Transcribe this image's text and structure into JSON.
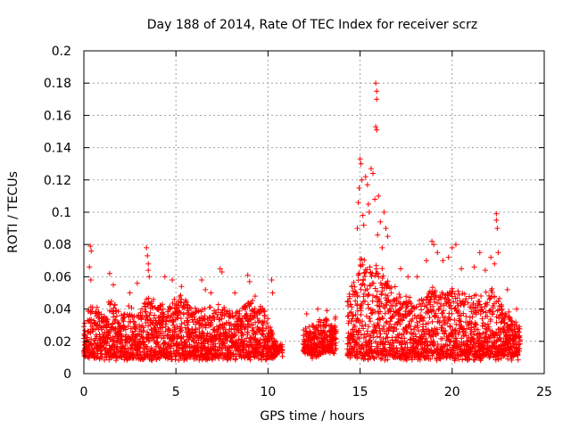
{
  "chart_data": {
    "type": "scatter",
    "title": "Day 188 of 2014, Rate Of TEC Index for receiver scrz",
    "xlabel": "GPS time / hours",
    "ylabel": "ROTI / TECUs",
    "xlim": [
      0,
      25
    ],
    "ylim": [
      0,
      0.2
    ],
    "x_ticks": [
      0,
      5,
      10,
      15,
      20,
      25
    ],
    "y_ticks": [
      0,
      0.02,
      0.04,
      0.06,
      0.08,
      0.1,
      0.12,
      0.14,
      0.16,
      0.18,
      0.2
    ],
    "x_tick_labels": [
      "0",
      "5",
      "10",
      "15",
      "20",
      "25"
    ],
    "y_tick_labels": [
      "0",
      "0.02",
      "0.04",
      "0.06",
      "0.08",
      "0.1",
      "0.12",
      "0.14",
      "0.16",
      "0.18",
      "0.2"
    ],
    "grid": true,
    "marker": "+",
    "color": "#ff0000",
    "envelope": {
      "description": "approximate band of dense ROTI samples; upper = typical upper edge, lower = typical lower edge (TECU/min)",
      "x": [
        0,
        0.5,
        1,
        1.5,
        2,
        2.5,
        3,
        3.5,
        4,
        4.5,
        5,
        5.5,
        6,
        6.5,
        7,
        7.5,
        8,
        8.5,
        9,
        9.5,
        10,
        10.5,
        12,
        12.5,
        13,
        13.5,
        14.5,
        15,
        15.5,
        16,
        16.5,
        17,
        17.5,
        18,
        18.5,
        19,
        19.5,
        20,
        20.5,
        21,
        21.5,
        22,
        22.5,
        23,
        23.5
      ],
      "upper": [
        0.034,
        0.042,
        0.036,
        0.044,
        0.038,
        0.04,
        0.036,
        0.05,
        0.042,
        0.04,
        0.046,
        0.044,
        0.04,
        0.038,
        0.04,
        0.042,
        0.036,
        0.038,
        0.044,
        0.04,
        0.036,
        0.016,
        0.026,
        0.03,
        0.034,
        0.03,
        0.05,
        0.07,
        0.062,
        0.066,
        0.056,
        0.05,
        0.046,
        0.042,
        0.046,
        0.052,
        0.05,
        0.052,
        0.05,
        0.048,
        0.046,
        0.05,
        0.05,
        0.036,
        0.03
      ],
      "lower": [
        0.012,
        0.01,
        0.01,
        0.01,
        0.01,
        0.01,
        0.01,
        0.01,
        0.01,
        0.01,
        0.01,
        0.01,
        0.01,
        0.01,
        0.01,
        0.01,
        0.01,
        0.01,
        0.01,
        0.01,
        0.01,
        0.012,
        0.014,
        0.01,
        0.014,
        0.014,
        0.01,
        0.01,
        0.01,
        0.01,
        0.01,
        0.01,
        0.01,
        0.01,
        0.01,
        0.01,
        0.01,
        0.01,
        0.01,
        0.01,
        0.01,
        0.01,
        0.01,
        0.01,
        0.01
      ]
    },
    "data_gaps_hours": [
      [
        10.8,
        11.9
      ],
      [
        13.7,
        14.3
      ]
    ],
    "outliers": [
      {
        "x": 0.35,
        "y": 0.079
      },
      {
        "x": 0.4,
        "y": 0.076
      },
      {
        "x": 0.3,
        "y": 0.066
      },
      {
        "x": 0.38,
        "y": 0.058
      },
      {
        "x": 1.4,
        "y": 0.062
      },
      {
        "x": 1.6,
        "y": 0.055
      },
      {
        "x": 2.5,
        "y": 0.05
      },
      {
        "x": 2.9,
        "y": 0.056
      },
      {
        "x": 3.4,
        "y": 0.078
      },
      {
        "x": 3.45,
        "y": 0.073
      },
      {
        "x": 3.5,
        "y": 0.068
      },
      {
        "x": 3.5,
        "y": 0.064
      },
      {
        "x": 3.55,
        "y": 0.06
      },
      {
        "x": 4.4,
        "y": 0.06
      },
      {
        "x": 4.8,
        "y": 0.058
      },
      {
        "x": 5.3,
        "y": 0.054
      },
      {
        "x": 6.4,
        "y": 0.058
      },
      {
        "x": 6.6,
        "y": 0.052
      },
      {
        "x": 6.9,
        "y": 0.05
      },
      {
        "x": 7.4,
        "y": 0.065
      },
      {
        "x": 7.5,
        "y": 0.063
      },
      {
        "x": 8.2,
        "y": 0.05
      },
      {
        "x": 8.9,
        "y": 0.061
      },
      {
        "x": 9.0,
        "y": 0.057
      },
      {
        "x": 9.3,
        "y": 0.048
      },
      {
        "x": 10.2,
        "y": 0.058
      },
      {
        "x": 10.25,
        "y": 0.05
      },
      {
        "x": 12.1,
        "y": 0.037
      },
      {
        "x": 12.7,
        "y": 0.04
      },
      {
        "x": 13.2,
        "y": 0.039
      },
      {
        "x": 14.85,
        "y": 0.09
      },
      {
        "x": 14.9,
        "y": 0.106
      },
      {
        "x": 14.95,
        "y": 0.115
      },
      {
        "x": 15.0,
        "y": 0.133
      },
      {
        "x": 15.05,
        "y": 0.13
      },
      {
        "x": 15.1,
        "y": 0.12
      },
      {
        "x": 15.15,
        "y": 0.098
      },
      {
        "x": 15.2,
        "y": 0.092
      },
      {
        "x": 15.3,
        "y": 0.122
      },
      {
        "x": 15.4,
        "y": 0.117
      },
      {
        "x": 15.45,
        "y": 0.105
      },
      {
        "x": 15.5,
        "y": 0.1
      },
      {
        "x": 15.6,
        "y": 0.127
      },
      {
        "x": 15.7,
        "y": 0.124
      },
      {
        "x": 15.8,
        "y": 0.108
      },
      {
        "x": 15.85,
        "y": 0.18
      },
      {
        "x": 15.9,
        "y": 0.175
      },
      {
        "x": 15.9,
        "y": 0.17
      },
      {
        "x": 15.85,
        "y": 0.153
      },
      {
        "x": 15.9,
        "y": 0.151
      },
      {
        "x": 16.0,
        "y": 0.11
      },
      {
        "x": 16.1,
        "y": 0.094
      },
      {
        "x": 16.3,
        "y": 0.1
      },
      {
        "x": 16.4,
        "y": 0.09
      },
      {
        "x": 16.5,
        "y": 0.085
      },
      {
        "x": 16.2,
        "y": 0.078
      },
      {
        "x": 15.95,
        "y": 0.086
      },
      {
        "x": 17.2,
        "y": 0.065
      },
      {
        "x": 17.6,
        "y": 0.06
      },
      {
        "x": 18.1,
        "y": 0.06
      },
      {
        "x": 18.6,
        "y": 0.07
      },
      {
        "x": 18.9,
        "y": 0.082
      },
      {
        "x": 19.0,
        "y": 0.08
      },
      {
        "x": 19.2,
        "y": 0.075
      },
      {
        "x": 19.5,
        "y": 0.07
      },
      {
        "x": 19.8,
        "y": 0.072
      },
      {
        "x": 20.0,
        "y": 0.078
      },
      {
        "x": 20.2,
        "y": 0.08
      },
      {
        "x": 20.5,
        "y": 0.065
      },
      {
        "x": 21.2,
        "y": 0.066
      },
      {
        "x": 21.5,
        "y": 0.075
      },
      {
        "x": 21.8,
        "y": 0.064
      },
      {
        "x": 22.1,
        "y": 0.072
      },
      {
        "x": 22.3,
        "y": 0.068
      },
      {
        "x": 22.4,
        "y": 0.099
      },
      {
        "x": 22.4,
        "y": 0.095
      },
      {
        "x": 22.45,
        "y": 0.09
      },
      {
        "x": 22.5,
        "y": 0.075
      },
      {
        "x": 23.0,
        "y": 0.052
      },
      {
        "x": 23.5,
        "y": 0.04
      }
    ]
  }
}
